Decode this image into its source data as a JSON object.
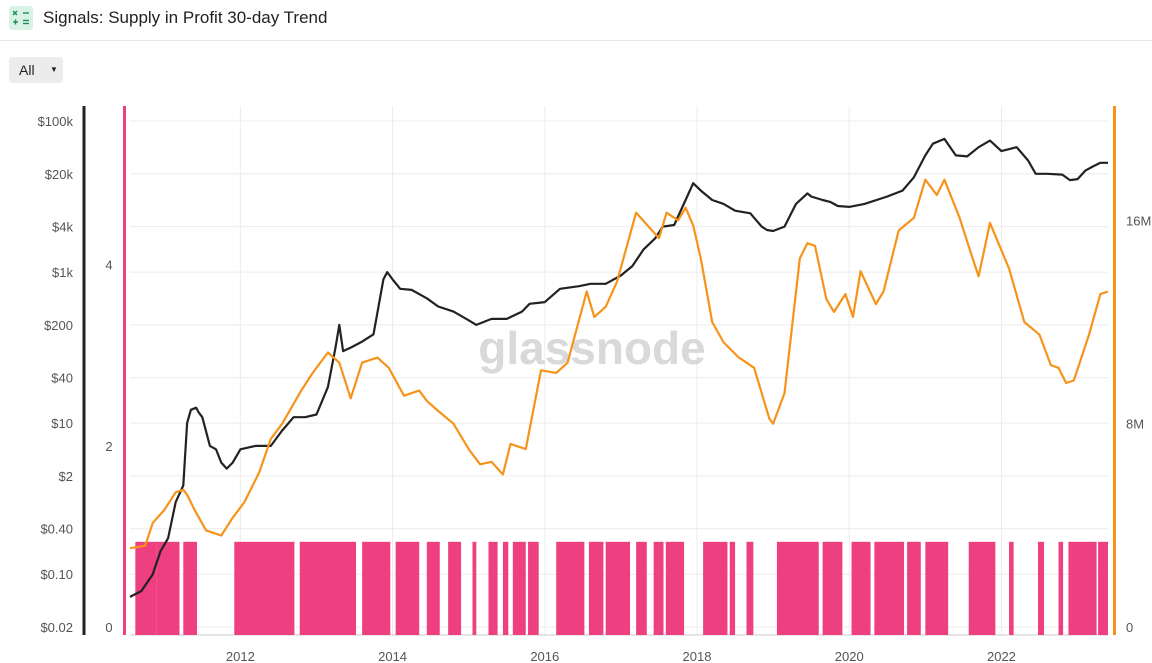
{
  "header": {
    "title": "Signals: Supply in Profit 30-day Trend",
    "icon": "calculator-icon"
  },
  "filter": {
    "label": "All",
    "icon": "caret-down-icon"
  },
  "watermark": "glassnode",
  "colors": {
    "price": "#222222",
    "supply": "#f7931a",
    "signal": "#ee3f80",
    "grid": "#ececec"
  },
  "chart_data": {
    "type": "line",
    "title": "",
    "x_ticks": [
      "2012",
      "2014",
      "2016",
      "2018",
      "2020",
      "2022"
    ],
    "x_tick_years": [
      2012,
      2014,
      2016,
      2018,
      2020,
      2022
    ],
    "x_range": [
      2010.55,
      2023.4
    ],
    "price_axis": {
      "scale": "log",
      "ticks": [
        "$100k",
        "$20k",
        "$4k",
        "$1k",
        "$200",
        "$40",
        "$10",
        "$2",
        "$0.40",
        "$0.10",
        "$0.02"
      ],
      "tick_values": [
        100000,
        20000,
        4000,
        1000,
        200,
        40,
        10,
        2,
        0.4,
        0.1,
        0.02
      ],
      "range": [
        0.02,
        100000
      ]
    },
    "signal_axis": {
      "ticks": [
        "4",
        "2",
        "0"
      ],
      "tick_values": [
        4,
        2,
        0
      ],
      "range": [
        0,
        5.75
      ]
    },
    "supply_axis": {
      "ticks": [
        "16M",
        "8M",
        "0"
      ],
      "tick_values": [
        16,
        8,
        0
      ],
      "range": [
        0,
        20.5
      ]
    },
    "series": [
      {
        "key": "price",
        "axis": "price",
        "x": [
          2010.55,
          2010.7,
          2010.85,
          2010.95,
          2011.05,
          2011.15,
          2011.25,
          2011.3,
          2011.35,
          2011.42,
          2011.45,
          2011.5,
          2011.6,
          2011.68,
          2011.75,
          2011.82,
          2011.9,
          2012.0,
          2012.2,
          2012.4,
          2012.55,
          2012.7,
          2012.85,
          2013.0,
          2013.15,
          2013.25,
          2013.3,
          2013.35,
          2013.45,
          2013.6,
          2013.75,
          2013.88,
          2013.93,
          2014.0,
          2014.1,
          2014.25,
          2014.45,
          2014.6,
          2014.8,
          2015.0,
          2015.1,
          2015.3,
          2015.5,
          2015.7,
          2015.8,
          2016.0,
          2016.2,
          2016.45,
          2016.6,
          2016.8,
          2017.0,
          2017.15,
          2017.3,
          2017.45,
          2017.55,
          2017.7,
          2017.85,
          2017.95,
          2018.05,
          2018.2,
          2018.35,
          2018.5,
          2018.7,
          2018.85,
          2018.92,
          2019.0,
          2019.15,
          2019.3,
          2019.45,
          2019.5,
          2019.65,
          2019.75,
          2019.85,
          2020.0,
          2020.2,
          2020.5,
          2020.7,
          2020.85,
          2021.0,
          2021.1,
          2021.25,
          2021.4,
          2021.55,
          2021.7,
          2021.85,
          2022.0,
          2022.2,
          2022.35,
          2022.45,
          2022.6,
          2022.8,
          2022.9,
          2023.0,
          2023.1,
          2023.2,
          2023.3,
          2023.4
        ],
        "values": [
          0.05,
          0.06,
          0.1,
          0.2,
          0.3,
          0.9,
          1.5,
          10,
          15,
          16,
          14,
          12,
          5,
          4.5,
          3,
          2.5,
          3,
          4.5,
          5,
          5,
          8,
          12,
          12,
          13,
          30,
          100,
          200,
          90,
          100,
          120,
          150,
          800,
          1000,
          800,
          600,
          580,
          450,
          350,
          300,
          230,
          200,
          240,
          240,
          300,
          380,
          400,
          600,
          650,
          700,
          700,
          900,
          1200,
          2000,
          2800,
          4000,
          4200,
          9000,
          15000,
          12000,
          9000,
          8000,
          6500,
          6000,
          4000,
          3600,
          3500,
          4000,
          8000,
          11000,
          10000,
          9000,
          8500,
          7500,
          7300,
          8000,
          10000,
          12000,
          18000,
          35000,
          50000,
          58000,
          35000,
          34000,
          45000,
          55000,
          40000,
          45000,
          30000,
          20000,
          20000,
          19500,
          16500,
          17000,
          22000,
          25000,
          28000,
          28000
        ]
      },
      {
        "key": "supply",
        "axis": "supply",
        "x": [
          2010.55,
          2010.75,
          2010.85,
          2011.0,
          2011.15,
          2011.25,
          2011.3,
          2011.4,
          2011.55,
          2011.75,
          2011.9,
          2012.05,
          2012.25,
          2012.4,
          2012.55,
          2012.8,
          2012.95,
          2013.15,
          2013.3,
          2013.45,
          2013.6,
          2013.8,
          2013.95,
          2014.15,
          2014.35,
          2014.45,
          2014.6,
          2014.8,
          2015.0,
          2015.15,
          2015.3,
          2015.45,
          2015.55,
          2015.75,
          2015.95,
          2016.15,
          2016.3,
          2016.55,
          2016.65,
          2016.8,
          2016.95,
          2017.2,
          2017.35,
          2017.5,
          2017.6,
          2017.75,
          2017.85,
          2017.95,
          2018.05,
          2018.2,
          2018.35,
          2018.55,
          2018.75,
          2018.95,
          2019.0,
          2019.15,
          2019.35,
          2019.45,
          2019.55,
          2019.7,
          2019.8,
          2019.95,
          2020.05,
          2020.15,
          2020.35,
          2020.45,
          2020.65,
          2020.85,
          2021.0,
          2021.15,
          2021.25,
          2021.45,
          2021.6,
          2021.7,
          2021.85,
          2022.1,
          2022.3,
          2022.5,
          2022.65,
          2022.75,
          2022.85,
          2022.95,
          2023.15,
          2023.3,
          2023.4
        ],
        "values": [
          3.1,
          3.2,
          4.1,
          4.6,
          5.3,
          5.4,
          5.2,
          4.6,
          3.8,
          3.6,
          4.3,
          4.9,
          6.1,
          7.4,
          8.0,
          9.3,
          10.0,
          10.8,
          10.4,
          9.0,
          10.4,
          10.6,
          10.2,
          9.1,
          9.3,
          8.9,
          8.5,
          8.0,
          7.0,
          6.4,
          6.5,
          6.0,
          7.2,
          7.0,
          10.1,
          10.0,
          10.4,
          13.2,
          12.2,
          12.6,
          13.6,
          16.3,
          15.8,
          15.3,
          16.3,
          16.0,
          16.5,
          15.8,
          14.5,
          12.0,
          11.2,
          10.6,
          10.2,
          8.2,
          8.0,
          9.2,
          14.5,
          15.1,
          15.0,
          12.9,
          12.4,
          13.1,
          12.2,
          14.0,
          12.7,
          13.2,
          15.6,
          16.1,
          17.6,
          17.0,
          17.6,
          16.1,
          14.7,
          13.8,
          15.9,
          14.1,
          12.0,
          11.5,
          10.3,
          10.2,
          9.6,
          9.7,
          11.5,
          13.1,
          13.2
        ]
      },
      {
        "key": "signal",
        "axis": "signal",
        "type": "step_bar",
        "value": 0.94,
        "intervals": [
          [
            2010.62,
            2010.9
          ],
          [
            2010.9,
            2011.2
          ],
          [
            2011.25,
            2011.43
          ],
          [
            2011.92,
            2012.71
          ],
          [
            2012.78,
            2013.52
          ],
          [
            2013.6,
            2013.97
          ],
          [
            2014.04,
            2014.35
          ],
          [
            2014.45,
            2014.62
          ],
          [
            2014.73,
            2014.9
          ],
          [
            2015.05,
            2015.1
          ],
          [
            2015.26,
            2015.38
          ],
          [
            2015.45,
            2015.52
          ],
          [
            2015.58,
            2015.75
          ],
          [
            2015.78,
            2015.92
          ],
          [
            2016.15,
            2016.52
          ],
          [
            2016.58,
            2016.77
          ],
          [
            2016.8,
            2017.12
          ],
          [
            2017.2,
            2017.34
          ],
          [
            2017.43,
            2017.56
          ],
          [
            2017.59,
            2017.83
          ],
          [
            2018.08,
            2018.4
          ],
          [
            2018.43,
            2018.5
          ],
          [
            2018.65,
            2018.74
          ],
          [
            2019.05,
            2019.6
          ],
          [
            2019.65,
            2019.91
          ],
          [
            2020.03,
            2020.28
          ],
          [
            2020.33,
            2020.72
          ],
          [
            2020.76,
            2020.94
          ],
          [
            2021.0,
            2021.3
          ],
          [
            2021.57,
            2021.92
          ],
          [
            2022.1,
            2022.16
          ],
          [
            2022.48,
            2022.56
          ],
          [
            2022.75,
            2022.81
          ],
          [
            2022.88,
            2023.25
          ],
          [
            2023.27,
            2023.4
          ]
        ]
      }
    ],
    "grid": true,
    "legend": "none"
  }
}
